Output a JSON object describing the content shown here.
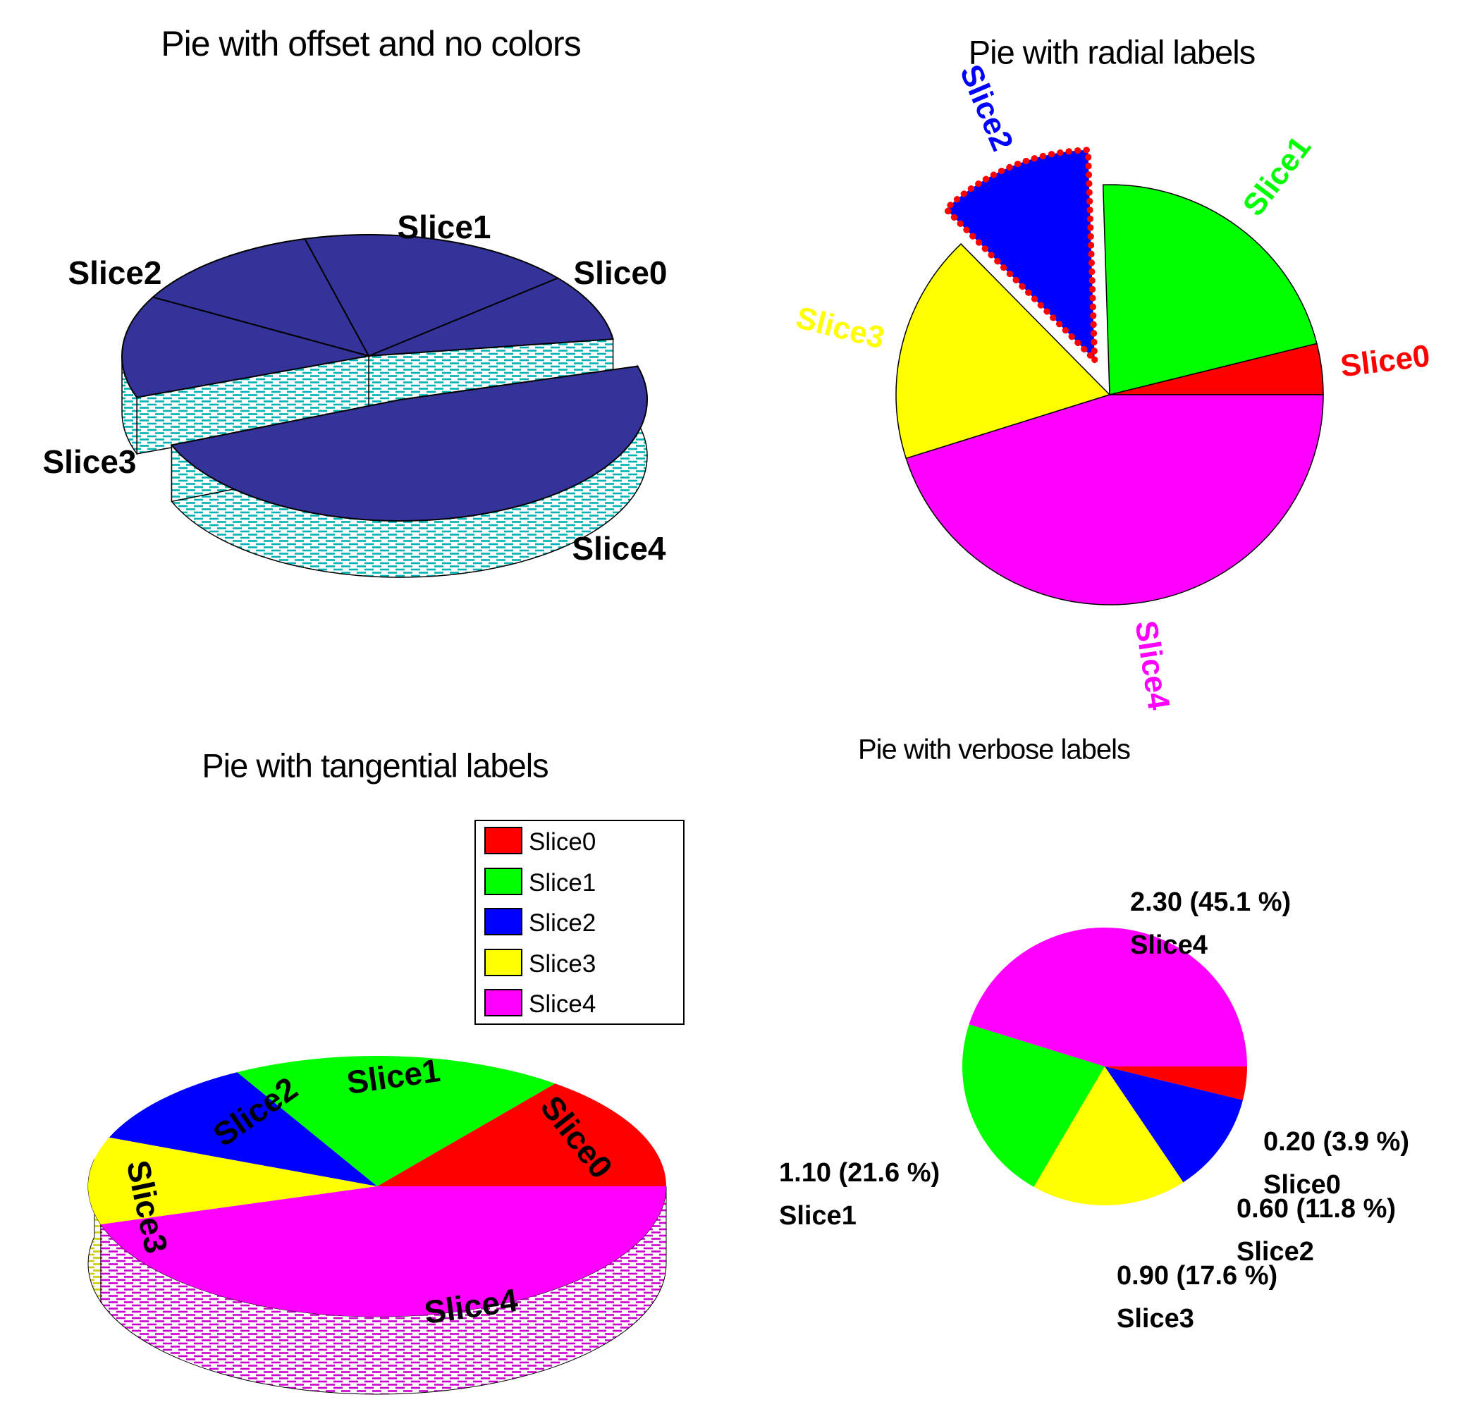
{
  "page_background": "#ffffff",
  "slice_colors": {
    "Slice0": "#ff0000",
    "Slice1": "#00ff00",
    "Slice2": "#0000ff",
    "Slice3": "#ffff00",
    "Slice4": "#ff00ff"
  },
  "chart_data": [
    {
      "type": "pie",
      "variant": "3d-offset-monochrome",
      "title": "Pie with offset and no colors",
      "categories": [
        "Slice0",
        "Slice1",
        "Slice2",
        "Slice3",
        "Slice4"
      ],
      "values": [
        0.2,
        1.1,
        0.6,
        0.9,
        2.3
      ],
      "percentages": [
        3.9,
        21.6,
        11.8,
        17.6,
        45.1
      ],
      "offset_slice": "Slice4",
      "top_color": "#333399",
      "side_hatch_color": "#00b2b2",
      "outline_color": "#000000",
      "legend": false
    },
    {
      "type": "pie",
      "variant": "flat-radial-labels",
      "title": "Pie with radial labels",
      "categories": [
        "Slice0",
        "Slice1",
        "Slice2",
        "Slice3",
        "Slice4"
      ],
      "values": [
        0.2,
        1.1,
        0.6,
        0.9,
        2.3
      ],
      "percentages": [
        3.9,
        21.6,
        11.8,
        17.6,
        45.1
      ],
      "colors": [
        "#ff0000",
        "#00ff00",
        "#0000ff",
        "#ffff00",
        "#ff00ff"
      ],
      "direction": "ccw",
      "start_angle_deg": 0,
      "exploded_slice": "Slice2",
      "exploded_border_style": "red-dotted",
      "label_style": "radial, colored like slice",
      "legend": false
    },
    {
      "type": "pie",
      "variant": "3d-tangential-labels",
      "title": "Pie with tangential labels",
      "categories": [
        "Slice0",
        "Slice1",
        "Slice2",
        "Slice3",
        "Slice4"
      ],
      "values": [
        0.2,
        1.1,
        0.6,
        0.9,
        2.3
      ],
      "percentages": [
        3.9,
        21.6,
        11.8,
        17.6,
        45.1
      ],
      "colors": [
        "#ff0000",
        "#00ff00",
        "#0000ff",
        "#ffff00",
        "#ff00ff"
      ],
      "label_style": "tangential, black bold on slices",
      "legend": true,
      "legend_entries": [
        "Slice0",
        "Slice1",
        "Slice2",
        "Slice3",
        "Slice4"
      ]
    },
    {
      "type": "pie",
      "variant": "flat-verbose-labels",
      "title": "Pie with verbose labels",
      "categories": [
        "Slice0",
        "Slice1",
        "Slice2",
        "Slice3",
        "Slice4"
      ],
      "values": [
        0.2,
        1.1,
        0.6,
        0.9,
        2.3
      ],
      "percentages": [
        3.9,
        21.6,
        11.8,
        17.6,
        45.1
      ],
      "colors": [
        "#ff0000",
        "#00ff00",
        "#0000ff",
        "#ffff00",
        "#ff00ff"
      ],
      "direction": "cw",
      "start_angle_deg": 0,
      "drawn_slice_order": [
        "Slice0",
        "Slice2",
        "Slice3",
        "Slice1",
        "Slice4"
      ],
      "verbose_labels": [
        {
          "slice": "Slice0",
          "line1": "0.20 (3.9 %)",
          "line2": "Slice0"
        },
        {
          "slice": "Slice2",
          "line1": "0.60 (11.8 %)",
          "line2": "Slice2"
        },
        {
          "slice": "Slice3",
          "line1": "0.90 (17.6 %)",
          "line2": "Slice3"
        },
        {
          "slice": "Slice1",
          "line1": "1.10 (21.6 %)",
          "line2": "Slice1"
        },
        {
          "slice": "Slice4",
          "line1": "2.30 (45.1 %)",
          "line2": "Slice4"
        }
      ],
      "legend": false
    }
  ]
}
